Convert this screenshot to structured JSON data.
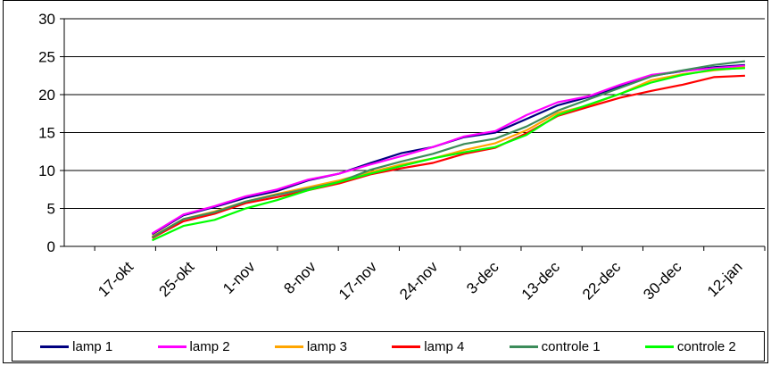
{
  "chart_data": {
    "type": "line",
    "title": "",
    "xlabel": "",
    "ylabel": "",
    "ylim": [
      0,
      30
    ],
    "yticks": [
      0,
      5,
      10,
      15,
      20,
      25,
      30
    ],
    "grid": "horizontal",
    "legend_position": "bottom",
    "x_labels": [
      "17-okt",
      "25-okt",
      "1-nov",
      "8-nov",
      "17-nov",
      "24-nov",
      "3-dec",
      "13-dec",
      "22-dec",
      "30-dec",
      "12-jan"
    ],
    "series": [
      {
        "name": "lamp 1",
        "color": "#000080",
        "x": [
          "25-okt-a",
          "25-okt-b",
          "1-nov-a",
          "1-nov-b",
          "8-nov-a",
          "8-nov-b",
          "17-nov-a",
          "17-nov-b",
          "24-nov-a",
          "24-nov-b",
          "3-dec-a",
          "3-dec-b",
          "13-dec-a",
          "13-dec-b",
          "22-dec-a",
          "22-dec-b",
          "30-dec-a",
          "30-dec-b",
          "12-jan-a",
          "12-jan-b"
        ],
        "values": [
          1.6,
          4.1,
          5.2,
          6.4,
          7.3,
          8.7,
          9.6,
          11.0,
          12.3,
          13.1,
          14.4,
          15.0,
          16.8,
          18.6,
          19.7,
          21.1,
          22.5,
          23.1,
          23.6,
          23.9
        ]
      },
      {
        "name": "lamp 2",
        "color": "#ff00ff",
        "values": [
          1.7,
          4.2,
          5.3,
          6.6,
          7.5,
          8.8,
          9.6,
          10.8,
          11.9,
          13.1,
          14.5,
          15.2,
          17.3,
          19.0,
          19.8,
          21.3,
          22.6,
          23.1,
          23.5,
          23.8
        ]
      },
      {
        "name": "lamp 3",
        "color": "#ffa500",
        "values": [
          1.3,
          3.6,
          4.6,
          5.9,
          6.9,
          7.8,
          8.7,
          9.8,
          10.8,
          11.6,
          12.7,
          13.6,
          15.3,
          17.6,
          18.6,
          20.1,
          21.9,
          22.7,
          23.2,
          23.6
        ]
      },
      {
        "name": "lamp 4",
        "color": "#ff0000",
        "values": [
          1.1,
          3.3,
          4.3,
          5.7,
          6.5,
          7.4,
          8.3,
          9.5,
          10.3,
          11.0,
          12.2,
          13.0,
          14.9,
          17.2,
          18.4,
          19.6,
          20.5,
          21.3,
          22.3,
          22.5
        ]
      },
      {
        "name": "controle 1",
        "color": "#3c8c5a",
        "values": [
          1.2,
          3.6,
          4.5,
          5.9,
          6.8,
          7.6,
          8.5,
          10.1,
          11.2,
          12.2,
          13.5,
          14.2,
          15.8,
          17.9,
          19.4,
          20.9,
          22.4,
          23.2,
          23.9,
          24.4
        ]
      },
      {
        "name": "controle 2",
        "color": "#00ff00",
        "values": [
          0.8,
          2.7,
          3.5,
          5.0,
          6.1,
          7.4,
          8.5,
          9.6,
          10.6,
          11.6,
          12.4,
          13.1,
          14.7,
          17.3,
          18.7,
          20.1,
          21.6,
          22.6,
          23.3,
          23.5
        ]
      }
    ]
  }
}
